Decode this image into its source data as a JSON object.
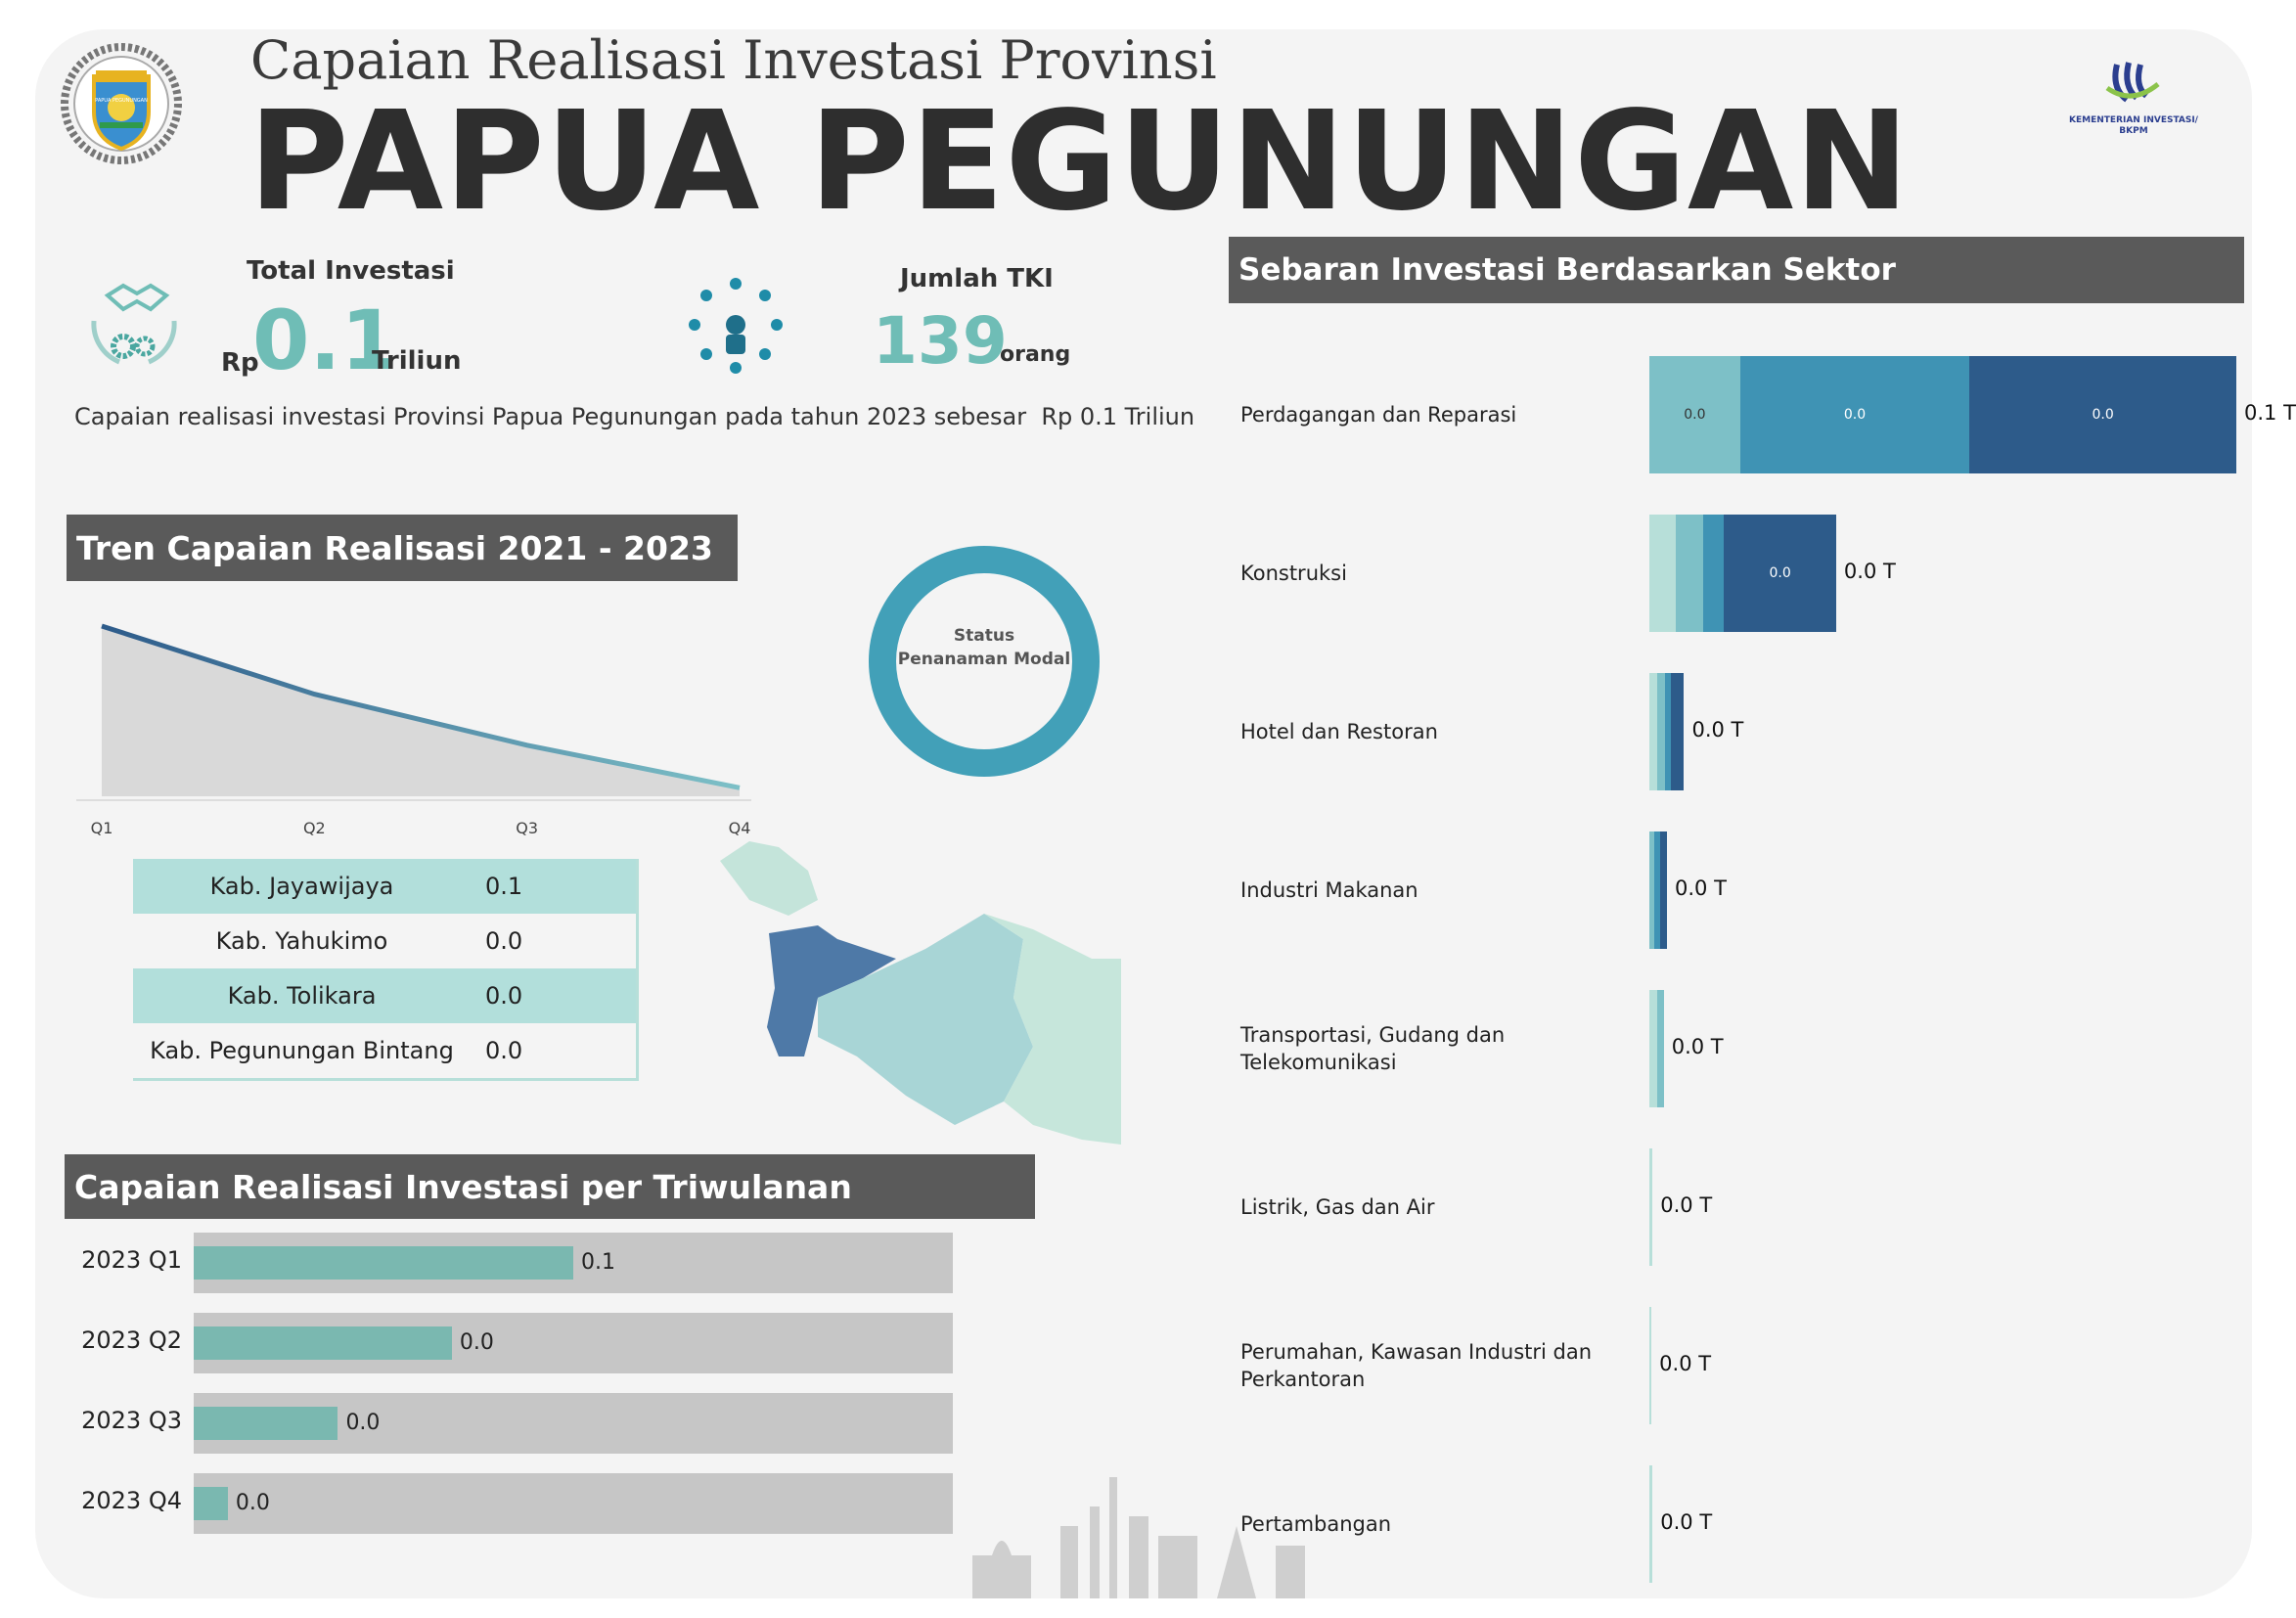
{
  "header": {
    "subtitle": "Capaian Realisasi Investasi Provinsi",
    "title": "PAPUA PEGUNUNGAN",
    "logo_text": "PAPUA PEGUNUNGAN",
    "ministry_logo_text": "KEMENTERIAN INVESTASI/ BKPM"
  },
  "kpi": {
    "investasi_label": "Total Investasi",
    "investasi_prefix": "Rp",
    "investasi_value": "0.1",
    "investasi_unit": "Triliun",
    "tki_label": "Jumlah TKI",
    "tki_value": "139",
    "tki_unit": "orang",
    "summary": "Capaian realisasi investasi Provinsi Papua Pegunungan pada tahun 2023 sebesar  Rp 0.1 Triliun"
  },
  "trend": {
    "title": "Tren Capaian Realisasi 2021 - 2023",
    "chart_data": {
      "type": "area",
      "categories": [
        "Q1",
        "Q2",
        "Q3",
        "Q4"
      ],
      "values": [
        0.1,
        0.06,
        0.03,
        0.005
      ]
    }
  },
  "donut": {
    "label_line1": "Status",
    "label_line2": "Penanaman Modal",
    "color": "#42a0b8"
  },
  "kabupaten_table": {
    "rows": [
      {
        "name": "Kab. Jayawijaya",
        "value": "0.1"
      },
      {
        "name": "Kab. Yahukimo",
        "value": "0.0"
      },
      {
        "name": "Kab. Tolikara",
        "value": "0.0"
      },
      {
        "name": "Kab. Pegunungan Bintang",
        "value": "0.0"
      }
    ]
  },
  "quarterly": {
    "title": "Capaian Realisasi Investasi per Triwulanan",
    "chart_data": {
      "type": "bar",
      "categories": [
        "2023 Q1",
        "2023 Q2",
        "2023 Q3",
        "2023 Q4"
      ],
      "values": [
        0.05,
        0.034,
        0.019,
        0.0045
      ],
      "labels": [
        "0.1",
        "0.0",
        "0.0",
        "0.0"
      ],
      "xlim": [
        0,
        0.1
      ]
    }
  },
  "sector": {
    "title": "Sebaran Investasi Berdasarkan Sektor",
    "chart_data": {
      "type": "bar",
      "orientation": "horizontal-stacked",
      "categories": [
        "Perdagangan dan Reparasi",
        "Konstruksi",
        "Hotel dan Restoran",
        "Industri Makanan",
        "Transportasi, Gudang dan Telekomunikasi",
        "Listrik, Gas dan Air",
        "Perumahan, Kawasan Industri dan Perkantoran",
        "Pertambangan"
      ],
      "segments": [
        [
          0.017,
          0.043,
          0.05
        ],
        [
          0.005,
          0.005,
          0.004,
          0.021
        ],
        [
          0.0015,
          0.0015,
          0.001,
          0.0025
        ],
        [
          0.001,
          0.001,
          0.0013
        ],
        [
          0.0015,
          0.0012
        ],
        [
          0.0006
        ],
        [
          0.0004
        ],
        [
          0.0006
        ]
      ],
      "segment_labels": [
        [
          "0.0",
          "0.0",
          "0.0"
        ],
        [
          "",
          "",
          "",
          "0.0"
        ],
        [
          "",
          "",
          "",
          ""
        ],
        [
          "",
          "",
          ""
        ],
        [
          "",
          ""
        ],
        [
          ""
        ],
        [
          ""
        ],
        [
          ""
        ]
      ],
      "totals": [
        "0.1 T",
        "0.0 T",
        "0.0 T",
        "0.0 T",
        "0.0 T",
        "0.0 T",
        "0.0 T",
        "0.0 T"
      ],
      "colors": [
        "#b7dfd9",
        "#7dc0c7",
        "#3f93b4",
        "#2d5b8a"
      ],
      "xlim": [
        0,
        0.11
      ]
    }
  }
}
